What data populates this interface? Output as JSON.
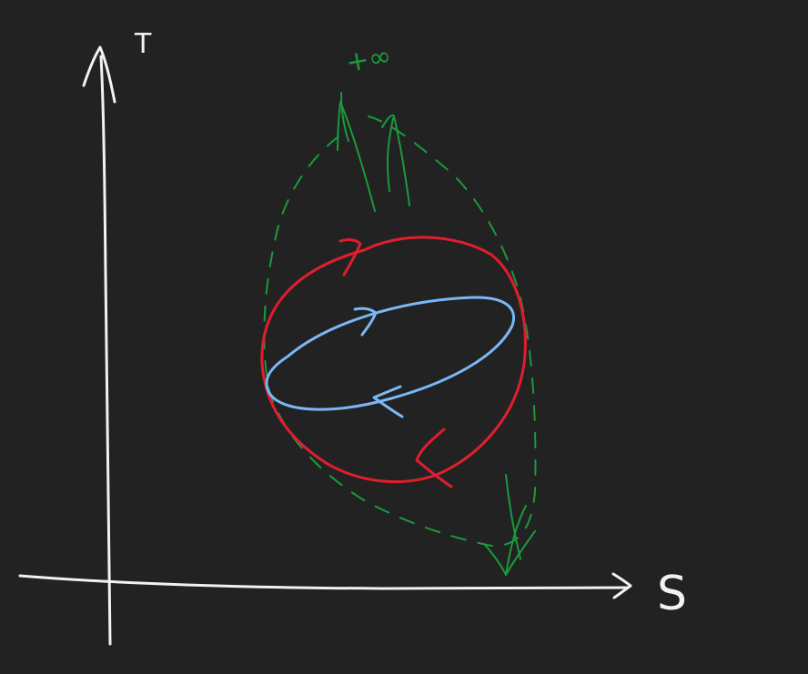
{
  "diagram": {
    "x_axis_label": "S",
    "y_axis_label": "T",
    "infinity_label": "+∞",
    "colors": {
      "background": "#222222",
      "axes": "#f2f2f2",
      "outer_cycle": "#1a9a3c",
      "middle_cycle": "#e01e2e",
      "inner_cycle": "#7ab8f5"
    }
  }
}
